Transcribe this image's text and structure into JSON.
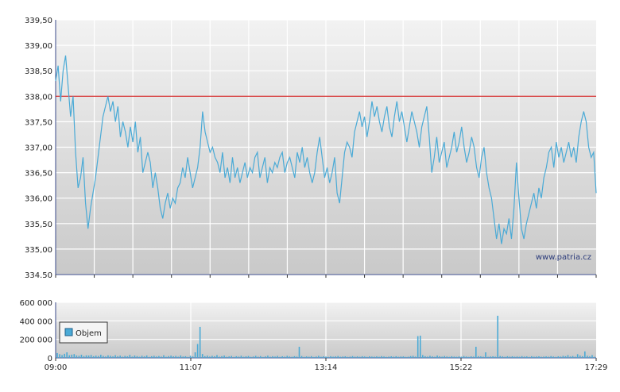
{
  "chart_data": [
    {
      "type": "line",
      "ylim": [
        334.5,
        339.5
      ],
      "yticks": [
        "334.50",
        "335,00",
        "335,50",
        "336,00",
        "336,50",
        "337,00",
        "337,50",
        "338,00",
        "338,50",
        "339,00",
        "339,50"
      ],
      "xlabels": [
        "09:00",
        "11:07",
        "13:14",
        "15:22",
        "17:29"
      ],
      "reference_line": 338.0,
      "watermark": "www.patria.cz",
      "colors": {
        "line": "#4aaad6",
        "reference": "#cc0000",
        "grid": "#ffffff",
        "bg_top": "#f0f0f0",
        "bg_bottom": "#c8c8c8"
      },
      "series": [
        {
          "values": [
            338.3,
            338.6,
            337.9,
            338.5,
            338.8,
            338.2,
            337.6,
            338.0,
            336.9,
            336.2,
            336.4,
            336.8,
            335.9,
            335.4,
            335.8,
            336.1,
            336.4,
            336.8,
            337.2,
            337.6,
            337.8,
            338.0,
            337.7,
            337.9,
            337.5,
            337.8,
            337.2,
            337.5,
            337.3,
            337.0,
            337.4,
            337.1,
            337.5,
            336.9,
            337.2,
            336.5,
            336.7,
            336.9,
            336.7,
            336.2,
            336.5,
            336.2,
            335.8,
            335.6,
            335.9,
            336.1,
            335.8,
            336.0,
            335.9,
            336.2,
            336.3,
            336.6,
            336.4,
            336.8,
            336.5,
            336.2,
            336.4,
            336.6,
            337.0,
            337.7,
            337.3,
            337.1,
            336.9,
            337.0,
            336.8,
            336.7,
            336.5,
            336.9,
            336.4,
            336.6,
            336.3,
            336.8,
            336.4,
            336.6,
            336.3,
            336.5,
            336.7,
            336.4,
            336.6,
            336.5,
            336.8,
            336.9,
            336.4,
            336.6,
            336.8,
            336.3,
            336.6,
            336.5,
            336.7,
            336.6,
            336.8,
            336.9,
            336.5,
            336.7,
            336.8,
            336.6,
            336.4,
            336.9,
            336.7,
            337.0,
            336.6,
            336.8,
            336.5,
            336.3,
            336.5,
            336.9,
            337.2,
            336.8,
            336.4,
            336.6,
            336.3,
            336.5,
            336.8,
            336.1,
            335.9,
            336.4,
            336.9,
            337.1,
            337.0,
            336.8,
            337.3,
            337.5,
            337.7,
            337.4,
            337.6,
            337.2,
            337.5,
            337.9,
            337.6,
            337.8,
            337.5,
            337.3,
            337.6,
            337.8,
            337.4,
            337.2,
            337.6,
            337.9,
            337.5,
            337.7,
            337.4,
            337.1,
            337.4,
            337.7,
            337.5,
            337.3,
            337.0,
            337.4,
            337.6,
            337.8,
            337.2,
            336.5,
            336.8,
            337.2,
            336.7,
            336.9,
            337.1,
            336.6,
            336.8,
            337.0,
            337.3,
            336.9,
            337.1,
            337.4,
            337.0,
            336.7,
            336.9,
            337.2,
            337.0,
            336.6,
            336.4,
            336.8,
            337.0,
            336.5,
            336.2,
            336.0,
            335.6,
            335.2,
            335.5,
            335.1,
            335.4,
            335.3,
            335.6,
            335.2,
            335.8,
            336.7,
            336.0,
            335.4,
            335.2,
            335.5,
            335.7,
            335.9,
            336.1,
            335.8,
            336.2,
            336.0,
            336.4,
            336.6,
            336.9,
            337.0,
            336.6,
            337.1,
            336.8,
            337.0,
            336.7,
            336.9,
            337.1,
            336.8,
            337.0,
            336.7,
            337.2,
            337.5,
            337.7,
            337.5,
            337.0,
            336.8,
            336.9,
            336.1
          ]
        }
      ]
    },
    {
      "type": "bar",
      "ylim": [
        0,
        600000
      ],
      "yticks": [
        "0",
        "200 000",
        "400 000",
        "600 000"
      ],
      "xlabels": [
        "09:00",
        "11:07",
        "13:14",
        "15:22",
        "17:29"
      ],
      "series": [
        {
          "name": "Objem",
          "values": [
            52000,
            40000,
            30000,
            44000,
            60000,
            28000,
            35000,
            41000,
            26000,
            22000,
            34000,
            19000,
            27000,
            25000,
            31000,
            18000,
            24000,
            20000,
            33000,
            21000,
            15000,
            27000,
            22000,
            16000,
            29000,
            18000,
            24000,
            13000,
            21000,
            17000,
            32000,
            14000,
            25000,
            19000,
            12000,
            23000,
            16000,
            26000,
            11000,
            18000,
            22000,
            15000,
            20000,
            14000,
            28000,
            12000,
            19000,
            24000,
            17000,
            21000,
            13000,
            26000,
            15000,
            18000,
            11000,
            23000,
            16000,
            60000,
            150000,
            335000,
            42000,
            18000,
            24000,
            14000,
            22000,
            17000,
            30000,
            13000,
            19000,
            25000,
            12000,
            16000,
            21000,
            11000,
            18000,
            14000,
            23000,
            12000,
            17000,
            20000,
            11000,
            15000,
            22000,
            13000,
            19000,
            10000,
            16000,
            24000,
            12000,
            18000,
            14000,
            21000,
            11000,
            17000,
            13000,
            22000,
            15000,
            12000,
            18000,
            14000,
            120000,
            20000,
            11000,
            16000,
            13000,
            19000,
            10000,
            15000,
            22000,
            12000,
            17000,
            14000,
            11000,
            18000,
            13000,
            16000,
            20000,
            12000,
            15000,
            17000,
            11000,
            14000,
            19000,
            13000,
            16000,
            12000,
            18000,
            15000,
            11000,
            17000,
            14000,
            13000,
            16000,
            12000,
            19000,
            15000,
            11000,
            14000,
            17000,
            13000,
            18000,
            12000,
            15000,
            16000,
            11000,
            13000,
            19000,
            22000,
            14000,
            235000,
            240000,
            30000,
            18000,
            14000,
            22000,
            16000,
            12000,
            25000,
            17000,
            13000,
            20000,
            15000,
            11000,
            18000,
            14000,
            12000,
            16000,
            13000,
            20000,
            15000,
            11000,
            17000,
            14000,
            120000,
            18000,
            16000,
            13000,
            60000,
            12000,
            15000,
            17000,
            13000,
            455000,
            20000,
            16000,
            12000,
            18000,
            14000,
            17000,
            13000,
            15000,
            12000,
            19000,
            14000,
            16000,
            11000,
            18000,
            13000,
            15000,
            17000,
            12000,
            14000,
            16000,
            13000,
            19000,
            15000,
            11000,
            17000,
            14000,
            22000,
            18000,
            30000,
            15000,
            20000,
            13000,
            40000,
            25000,
            18000,
            70000,
            22000,
            16000,
            30000,
            12000
          ]
        }
      ]
    }
  ]
}
